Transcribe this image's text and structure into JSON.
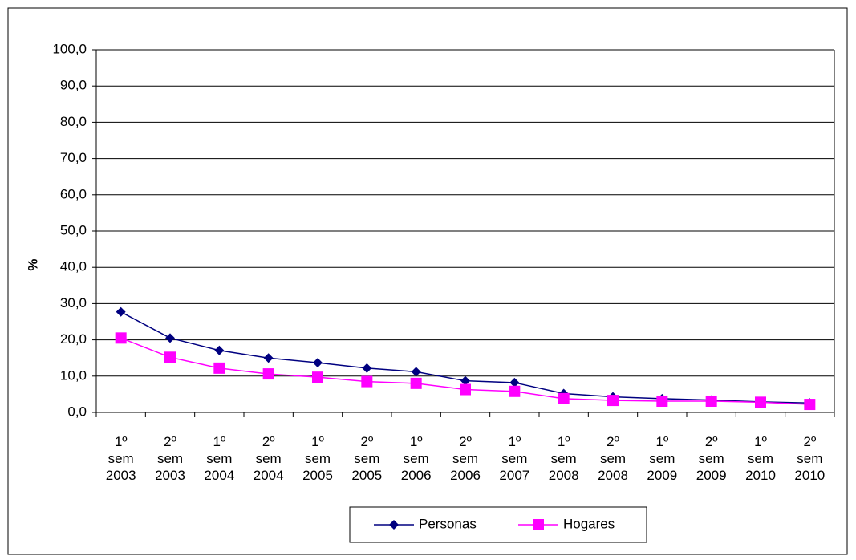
{
  "chart_data": {
    "type": "line",
    "y_label": "%",
    "categories": [
      "1º sem 2003",
      "2º sem 2003",
      "1º sem 2004",
      "2º sem 2004",
      "1º sem 2005",
      "2º sem 2005",
      "1º sem 2006",
      "2º sem 2006",
      "1º sem 2007",
      "1º sem 2008",
      "2º sem 2008",
      "1º sem 2009",
      "2º sem 2009",
      "1º sem 2010",
      "2º sem 2010"
    ],
    "series": [
      {
        "name": "Personas",
        "color": "#000080",
        "marker": "diamond",
        "values": [
          27.7,
          20.5,
          17.1,
          15.0,
          13.7,
          12.2,
          11.2,
          8.7,
          8.2,
          5.2,
          4.3,
          3.8,
          3.4,
          2.9,
          2.6
        ]
      },
      {
        "name": "Hogares",
        "color": "#ff00ff",
        "marker": "square",
        "values": [
          20.5,
          15.2,
          12.2,
          10.6,
          9.7,
          8.5,
          8.0,
          6.3,
          5.8,
          3.8,
          3.3,
          3.1,
          3.1,
          2.8,
          2.2
        ]
      }
    ],
    "ylim": [
      0,
      100
    ],
    "yticks": [
      {
        "value": 0,
        "label": "0,0"
      },
      {
        "value": 10,
        "label": "10,0"
      },
      {
        "value": 20,
        "label": "20,0"
      },
      {
        "value": 30,
        "label": "30,0"
      },
      {
        "value": 40,
        "label": "40,0"
      },
      {
        "value": 50,
        "label": "50,0"
      },
      {
        "value": 60,
        "label": "60,0"
      },
      {
        "value": 70,
        "label": "70,0"
      },
      {
        "value": 80,
        "label": "80,0"
      },
      {
        "value": 90,
        "label": "90,0"
      },
      {
        "value": 100,
        "label": "100,0"
      }
    ],
    "grid": true
  }
}
